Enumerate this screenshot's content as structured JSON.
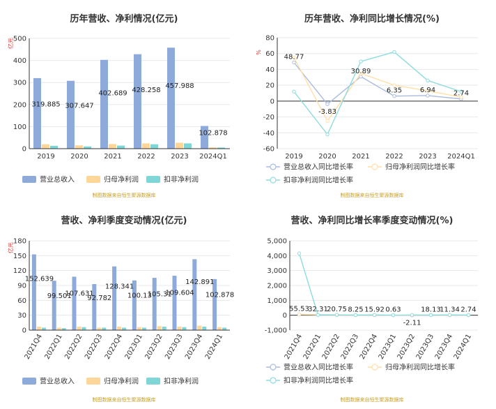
{
  "colors": {
    "revenue": "#8eaadb",
    "net_profit": "#ffd699",
    "deducted_profit": "#7fd6d6",
    "revenue_line": "#a9bce0",
    "net_line": "#ffe0a8",
    "deducted_line": "#8fdcdc",
    "grid": "#e8e8e8",
    "axis": "#333333"
  },
  "chart_data": [
    {
      "type": "bar",
      "title": "历年营收、净利情况(亿元)",
      "unit": "亿元",
      "categories": [
        "2019",
        "2020",
        "2021",
        "2022",
        "2023",
        "2024Q1"
      ],
      "series": [
        {
          "name": "营业总收入",
          "values": [
            319.885,
            307.647,
            402.689,
            428.258,
            457.988,
            102.878
          ],
          "labels": [
            "319.885",
            "307.647",
            "402.689",
            "428.258",
            "457.988",
            "102.878"
          ]
        },
        {
          "name": "归母净利润",
          "values": [
            20,
            15,
            21,
            24,
            27,
            6
          ]
        },
        {
          "name": "扣非净利润",
          "values": [
            13,
            10,
            14,
            20,
            24,
            5
          ]
        }
      ],
      "ylim": [
        0,
        500
      ],
      "yticks": [
        0,
        100,
        200,
        300,
        400,
        500
      ],
      "grid": true,
      "legend": "bottom-left",
      "source_note": "制图数据来自恒生聚源数据库"
    },
    {
      "type": "line",
      "title": "历年营收、净利同比增长情况(%)",
      "unit": "%",
      "categories": [
        "2019",
        "2020",
        "2021",
        "2022",
        "2023",
        "2024Q1"
      ],
      "series": [
        {
          "name": "营业总收入同比增长率",
          "values": [
            48.77,
            -3.83,
            30.89,
            6.35,
            6.94,
            2.74
          ],
          "labels": [
            "48.77",
            "-3.83",
            "30.89",
            "6.35",
            "6.94",
            "2.74"
          ]
        },
        {
          "name": "归母净利润同比增长率",
          "values": [
            55,
            -25,
            35,
            20,
            13,
            5
          ]
        },
        {
          "name": "扣非净利润同比增长率",
          "values": [
            12,
            -42,
            50,
            62,
            26,
            12
          ]
        }
      ],
      "ylim": [
        -60,
        80
      ],
      "yticks": [
        -60,
        -40,
        -20,
        0,
        20,
        40,
        60,
        80
      ],
      "grid": true,
      "legend": "bottom",
      "source_note": "制图数据来自恒生聚源数据库"
    },
    {
      "type": "bar",
      "title": "营收、净利季度变动情况(亿元)",
      "unit": "亿元",
      "categories": [
        "2021Q4",
        "2022Q1",
        "2022Q2",
        "2022Q3",
        "2022Q4",
        "2023Q1",
        "2023Q2",
        "2023Q3",
        "2023Q4",
        "2024Q1"
      ],
      "series": [
        {
          "name": "营业总收入",
          "values": [
            152.639,
            99.501,
            107.631,
            92.782,
            128.341,
            100.13,
            105.31,
            109.604,
            142.891,
            102.878
          ],
          "labels": [
            "152.639",
            "99.501",
            "107.631",
            "92.782",
            "128.341",
            "100.13",
            "105.31",
            "109.604",
            "142.891",
            "102.878"
          ]
        },
        {
          "name": "归母净利润",
          "values": [
            7,
            5,
            7,
            5,
            7,
            6,
            8,
            7,
            9,
            6
          ]
        },
        {
          "name": "扣非净利润",
          "values": [
            5,
            4,
            6,
            5,
            5,
            5,
            7,
            6,
            7,
            5
          ]
        }
      ],
      "ylim": [
        0,
        180
      ],
      "yticks": [
        0,
        30,
        60,
        90,
        120,
        150,
        180
      ],
      "grid": true,
      "legend": "bottom-left",
      "source_note": "制图数据来自恒生聚源数据库"
    },
    {
      "type": "line",
      "title": "营收、净利同比增长率季度变动情况(%)",
      "unit": "",
      "categories": [
        "2021Q4",
        "2022Q1",
        "2022Q2",
        "2022Q3",
        "2022Q4",
        "2023Q1",
        "2023Q2",
        "2023Q3",
        "2023Q4",
        "2024Q1"
      ],
      "series": [
        {
          "name": "营业总收入同比增长率",
          "values": [
            55.53,
            32.31,
            20.75,
            8.25,
            15.92,
            0.63,
            -2.11,
            18.13,
            11.34,
            2.74
          ],
          "labels": [
            "55.53",
            "32.31",
            "20.75",
            "8.25",
            "15.92",
            "0.63",
            "-2.11",
            "18.13",
            "11.34",
            "2.74"
          ]
        },
        {
          "name": "归母净利润同比增长率",
          "values": [
            60,
            30,
            25,
            10,
            15,
            5,
            10,
            15,
            10,
            5
          ]
        },
        {
          "name": "扣非净利润同比增长率",
          "values": [
            4150,
            20,
            30,
            10,
            20,
            5,
            15,
            10,
            20,
            10
          ]
        }
      ],
      "ylim": [
        -1000,
        5000
      ],
      "yticks": [
        -1000,
        0,
        1000,
        2000,
        3000,
        4000,
        5000
      ],
      "ytick_labels": [
        "-1,000",
        "0",
        "1,000",
        "2,000",
        "3,000",
        "4,000",
        "5,000"
      ],
      "grid": true,
      "legend": "bottom",
      "source_note": "制图数据来自恒生聚源数据库"
    }
  ]
}
